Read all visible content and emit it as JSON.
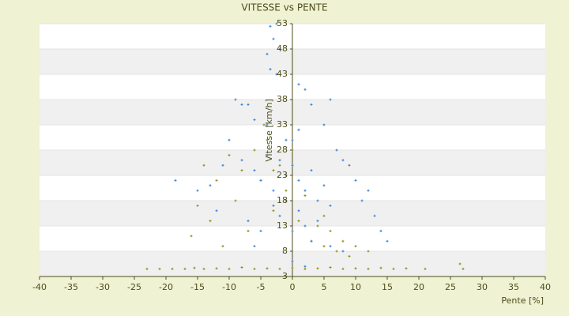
{
  "chart_data": {
    "type": "scatter",
    "title": "VITESSE vs PENTE",
    "x_label": "Pente [%]",
    "y_label": "Vitesse [km/h]",
    "xlim": [
      -40,
      40
    ],
    "xticks": [
      -40,
      -35,
      -30,
      -25,
      -20,
      -15,
      -10,
      -5,
      0,
      5,
      10,
      15,
      20,
      25,
      30,
      35,
      40
    ],
    "ylim": [
      3,
      53
    ],
    "yticks": [
      3,
      8,
      13,
      18,
      23,
      28,
      33,
      38,
      43,
      48,
      53
    ],
    "grid": true,
    "series": [
      {
        "color": "#8c8c14",
        "x": [
          -23,
          -21,
          -19,
          -17,
          -15.5,
          -14,
          -12,
          -10,
          -8,
          -6,
          -4,
          -2,
          0,
          2,
          4,
          6,
          8,
          10,
          12,
          14,
          16,
          18,
          21,
          26.5,
          27,
          -16,
          -15,
          -13,
          -12,
          -11,
          -10,
          -9,
          -8,
          -7,
          -6,
          -5,
          -4,
          -3,
          -2,
          -1,
          1,
          2,
          3,
          4,
          5,
          6,
          7,
          8,
          9,
          10,
          12,
          -14,
          -4.5,
          -3,
          0,
          5
        ],
        "values": [
          4.5,
          4.5,
          4.5,
          4.5,
          4.7,
          4.5,
          4.6,
          4.5,
          4.8,
          4.5,
          4.6,
          4.5,
          4.7,
          4.5,
          4.6,
          4.8,
          4.5,
          4.6,
          4.5,
          4.7,
          4.5,
          4.6,
          4.5,
          5.5,
          4.5,
          11,
          17,
          14,
          22,
          9,
          27,
          18,
          24,
          12,
          28,
          22,
          30,
          16,
          25,
          20,
          14,
          19,
          10,
          13,
          9,
          12,
          8,
          10,
          7,
          9,
          8,
          25,
          33,
          24,
          28,
          15
        ]
      },
      {
        "color": "#2f80d4",
        "x": [
          -3.5,
          -2.5,
          -3,
          -4,
          -2,
          -3.5,
          -2.5,
          1,
          2,
          6,
          -9,
          -7,
          -8,
          -6,
          -4,
          0,
          -10,
          -18.5,
          -15,
          -13,
          -12,
          -11,
          -8,
          -6,
          -5,
          -4,
          -3,
          -2,
          -1,
          0,
          1,
          2,
          3,
          4,
          5,
          6,
          7,
          8,
          9,
          10,
          11,
          12,
          13,
          14,
          15,
          -3,
          -2,
          -1,
          0,
          1,
          2,
          3,
          4,
          6,
          8,
          -5,
          -6,
          0,
          2,
          -1,
          1,
          5,
          3,
          -7
        ],
        "values": [
          52.5,
          53,
          50,
          47,
          48,
          44,
          43,
          41,
          40,
          38,
          38,
          37,
          37,
          34,
          33,
          30,
          30,
          22,
          20,
          21,
          16,
          25,
          26,
          24,
          22,
          27,
          20,
          26,
          23,
          25,
          22,
          20,
          24,
          18,
          21,
          17,
          28,
          26,
          25,
          22,
          18,
          20,
          15,
          12,
          10,
          17,
          15,
          18,
          12,
          16,
          13,
          10,
          14,
          9,
          8,
          12,
          9,
          6,
          5,
          30,
          32,
          33,
          37,
          14
        ]
      }
    ]
  }
}
